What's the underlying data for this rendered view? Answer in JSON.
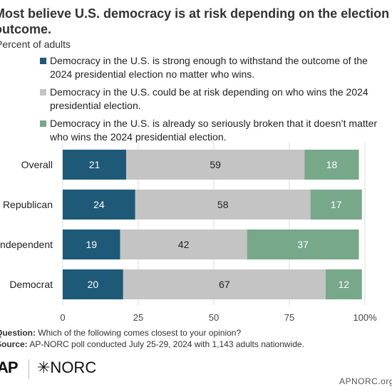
{
  "chart_data": {
    "type": "bar",
    "orientation": "horizontal",
    "stacked": true,
    "title": "Most believe U.S. democracy is at risk depending on the election outcome.",
    "subtitle": "Percent of adults",
    "categories": [
      "Overall",
      "Republican",
      "Independent",
      "Democrat"
    ],
    "series": [
      {
        "name": "Democracy in the U.S. is strong enough to withstand the outcome of the 2024 presidential election no matter who wins.",
        "color": "#1e5a78",
        "values": [
          21,
          24,
          19,
          20
        ]
      },
      {
        "name": "Democracy in the U.S. could be at risk depending on who wins the 2024 presidential election.",
        "color": "#c4c4c4",
        "values": [
          59,
          58,
          42,
          67
        ]
      },
      {
        "name": "Democracy in the U.S. is already so seriously broken that it doesn’t matter who wins the 2024 presidential election.",
        "color": "#78a88a",
        "values": [
          18,
          17,
          37,
          12
        ]
      }
    ],
    "xlim": [
      0,
      100
    ],
    "xticks": [
      "0",
      "25",
      "50",
      "75",
      "100%"
    ],
    "grid": true,
    "legend_position": "top"
  },
  "footnotes": {
    "question_label": "Question:",
    "question_text": "Which of the following comes closest to your opinion?",
    "source_label": "Source:",
    "source_text": "AP-NORC poll conducted July 25-29, 2024 with 1,143 adults nationwide."
  },
  "branding": {
    "ap": "AP",
    "norc": "✳NORC",
    "site": "APNORC.org"
  }
}
